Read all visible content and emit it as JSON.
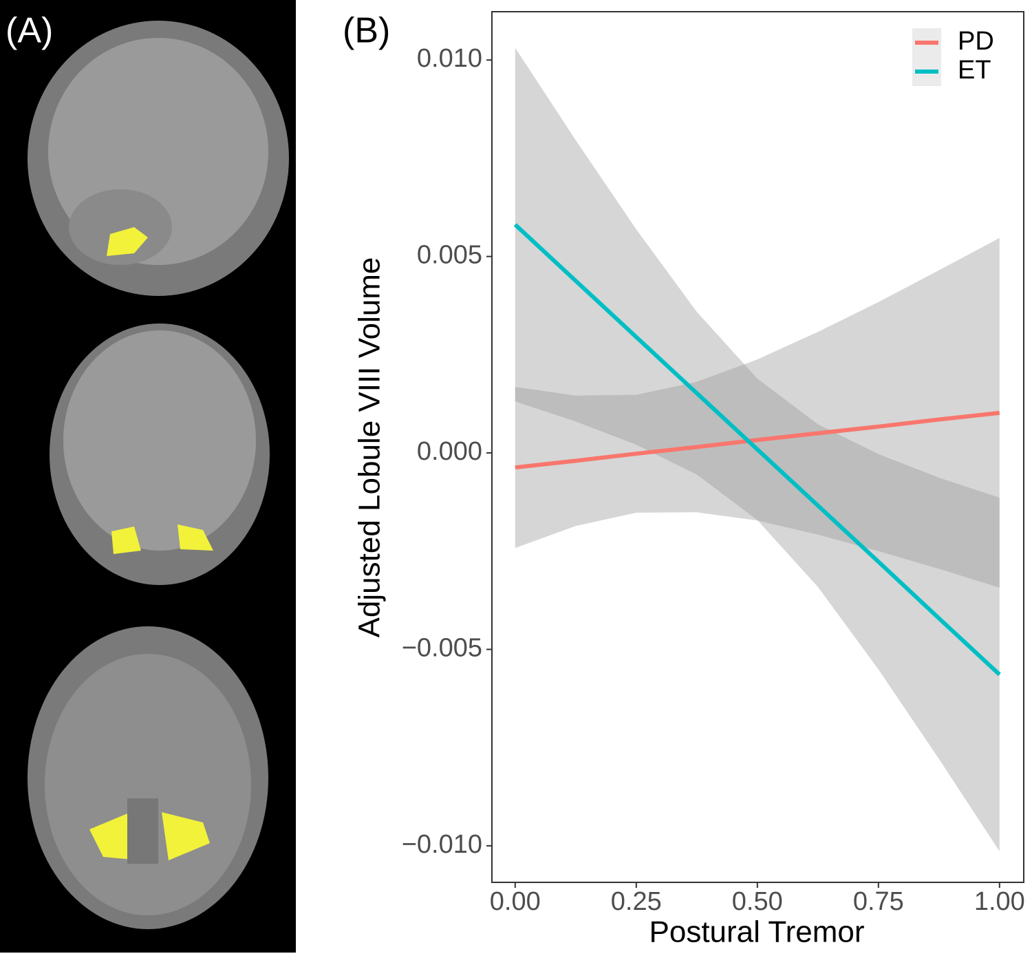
{
  "panel_a": {
    "label": "(A)"
  },
  "chart_data": {
    "type": "line",
    "panel_label": "(B)",
    "xlabel": "Postural Tremor",
    "ylabel": "Adjusted Lobule VIII Volume",
    "x": [
      0,
      0.125,
      0.25,
      0.375,
      0.5,
      0.625,
      0.75,
      0.875,
      1
    ],
    "series": [
      {
        "name": "PD",
        "color": "#F8766D",
        "values": [
          -0.00037,
          -0.0002,
          -2e-05,
          0.00015,
          0.00033,
          0.0005,
          0.00067,
          0.00085,
          0.00102
        ],
        "upper": [
          0.00168,
          0.00146,
          0.00148,
          0.00181,
          0.00238,
          0.00308,
          0.00384,
          0.00465,
          0.00547
        ],
        "lower": [
          -0.00242,
          -0.00186,
          -0.00152,
          -0.00151,
          -0.00172,
          -0.00208,
          -0.0025,
          -0.00295,
          -0.00343
        ]
      },
      {
        "name": "ET",
        "color": "#00BFC4",
        "values": [
          0.00581,
          0.00438,
          0.00295,
          0.00152,
          9e-05,
          -0.00134,
          -0.00277,
          -0.00421,
          -0.00564
        ],
        "upper": [
          0.01031,
          0.00796,
          0.00569,
          0.00359,
          0.00189,
          0.00073,
          -3e-05,
          -0.00063,
          -0.00114
        ],
        "lower": [
          0.00131,
          0.0008,
          0.00021,
          -0.00055,
          -0.00171,
          -0.00341,
          -0.00551,
          -0.00779,
          -0.01014
        ]
      }
    ],
    "band_color": "#999999",
    "xlim": [
      -0.048,
      1.05
    ],
    "ylim": [
      -0.01093,
      0.01123
    ],
    "xticks": [
      {
        "value": 0,
        "label": "0.00"
      },
      0.25,
      {
        "value": 0.5,
        "label": "0.50"
      },
      0.75,
      {
        "value": 1,
        "label": "1.00"
      }
    ],
    "yticks": [
      {
        "value": -0.01,
        "label": "−0.010"
      },
      {
        "value": -0.005,
        "label": "−0.005"
      },
      {
        "value": 0,
        "label": "0.000"
      },
      0.005,
      {
        "value": 0.01,
        "label": "0.010"
      }
    ],
    "legend": "top-right",
    "grid": false
  }
}
